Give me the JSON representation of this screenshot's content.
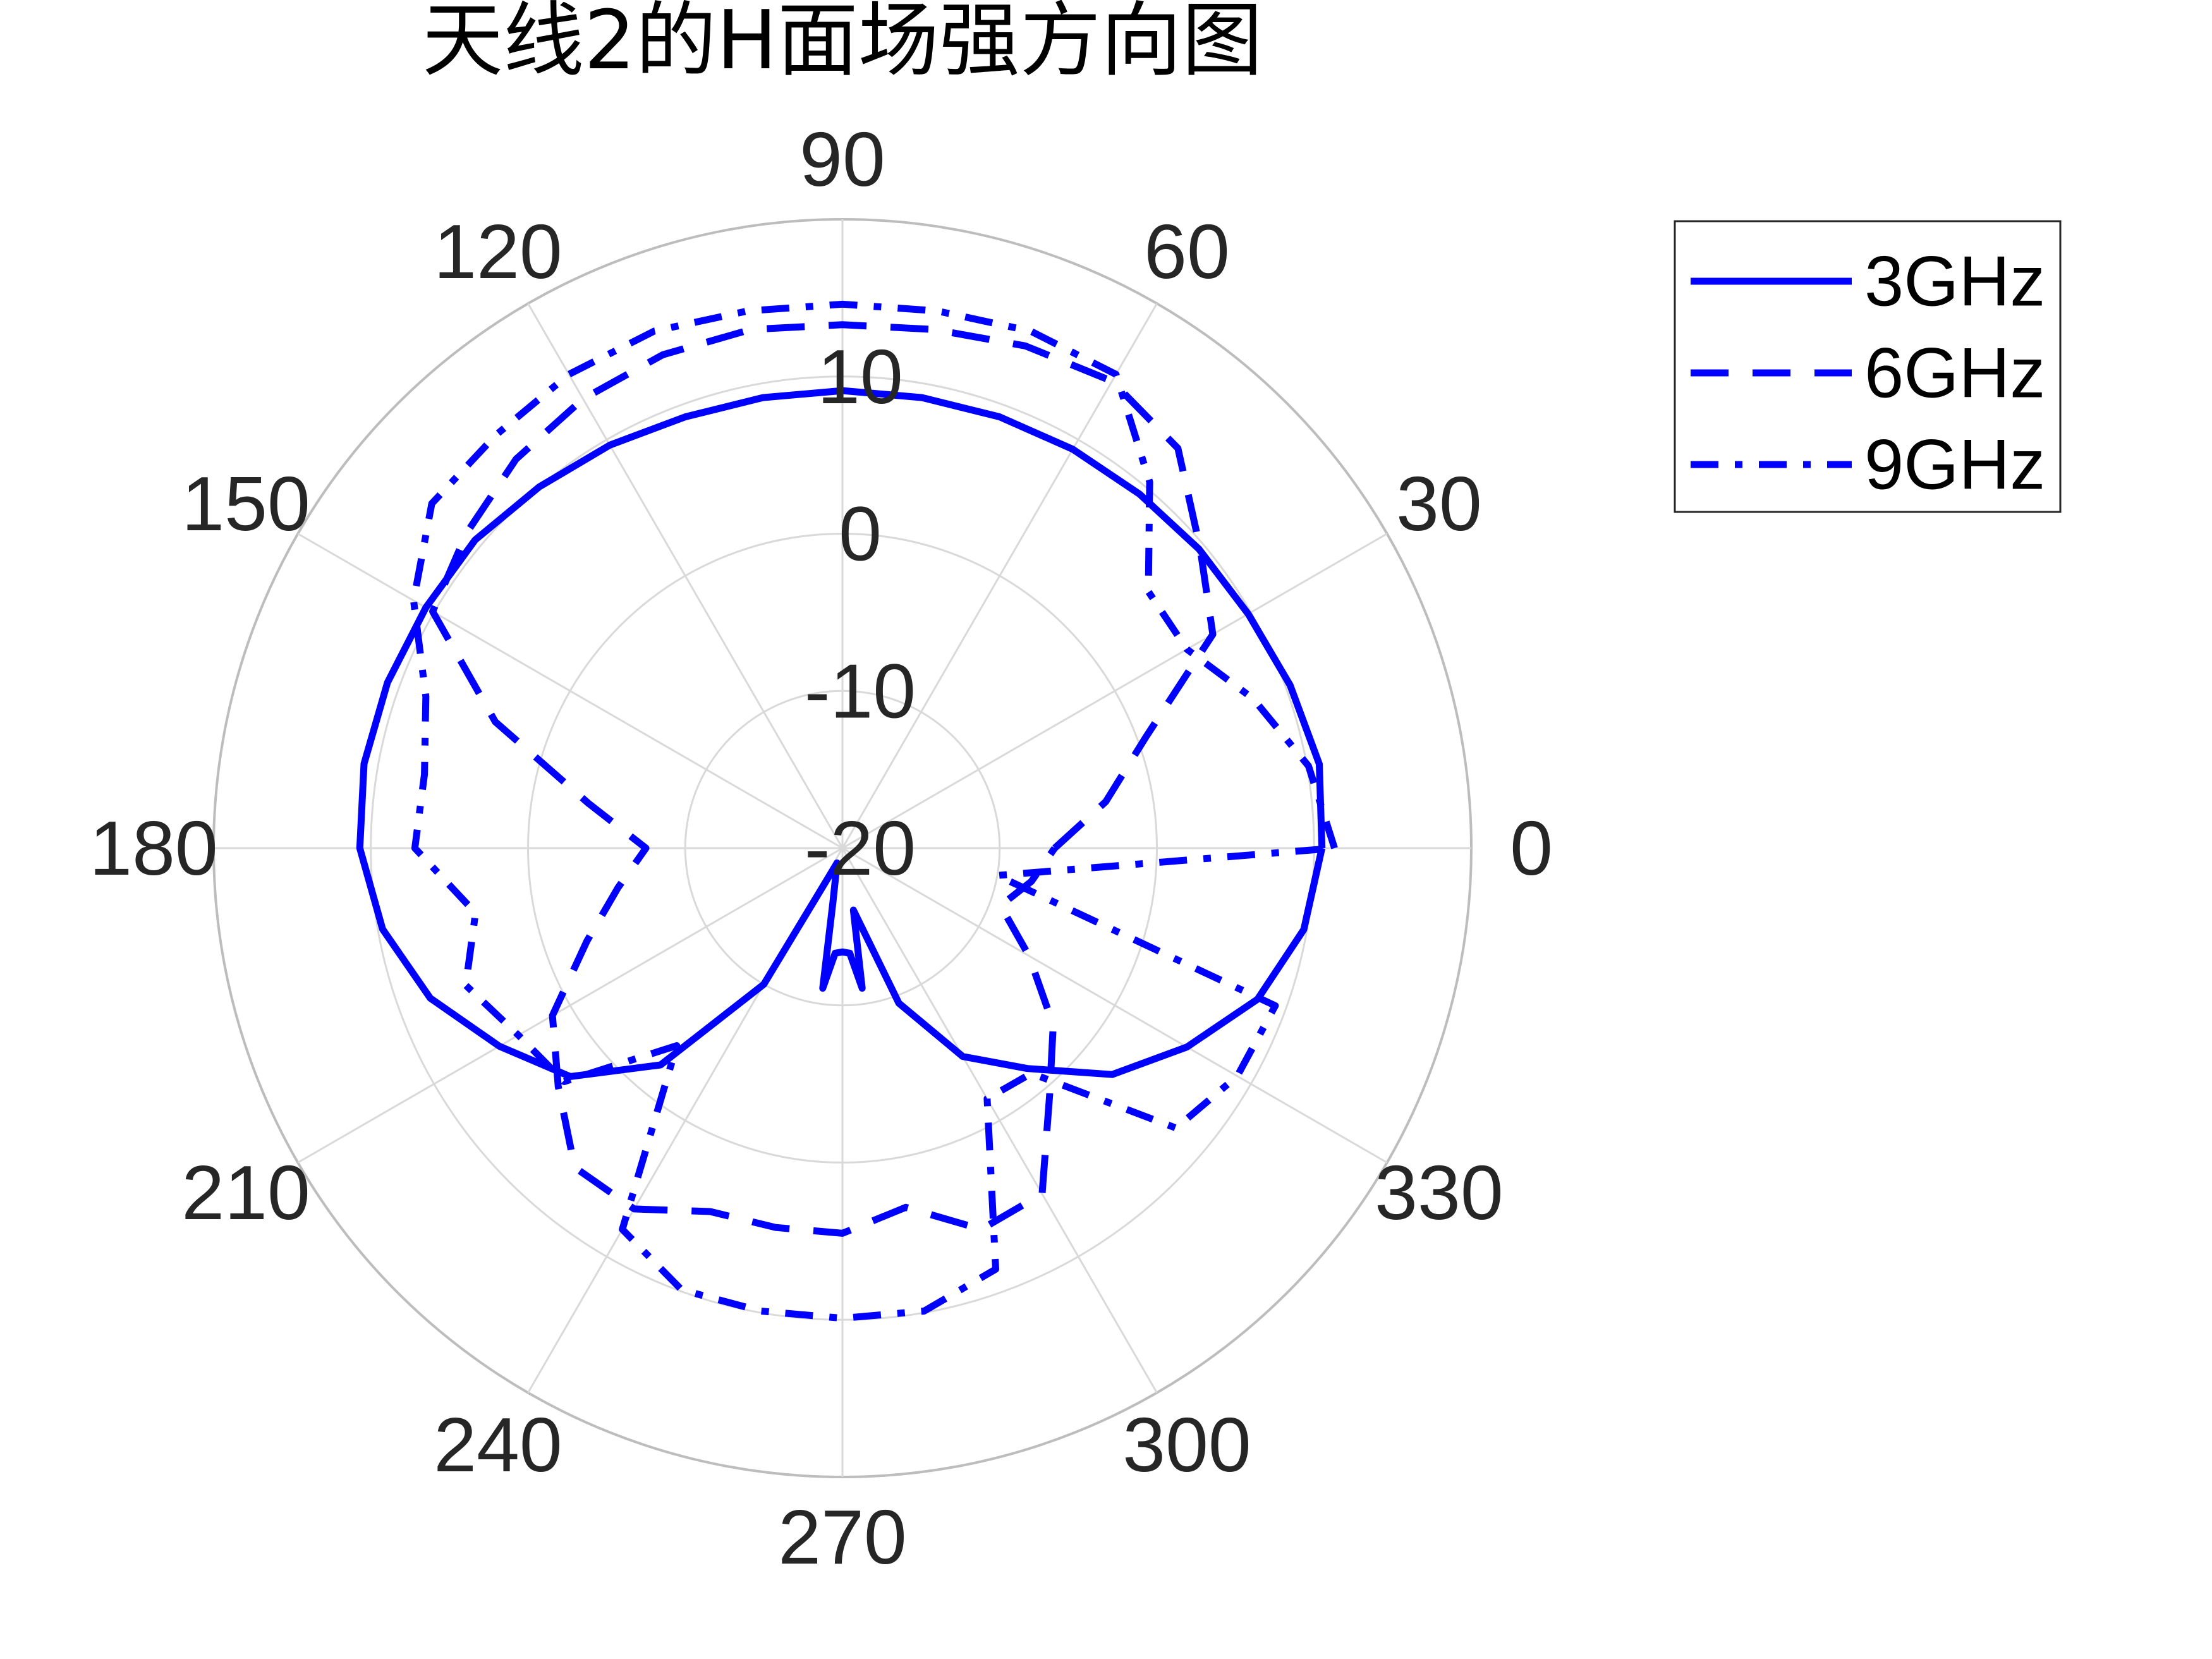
{
  "chart_data": {
    "type": "line",
    "polar": true,
    "title": "天线2的H面场强方向图",
    "angle_unit": "degrees",
    "angle_ticks": [
      0,
      30,
      60,
      90,
      120,
      150,
      180,
      210,
      240,
      270,
      300,
      330
    ],
    "angle_tick_labels": [
      "0",
      "30",
      "60",
      "90",
      "120",
      "150",
      "180",
      "210",
      "240",
      "270",
      "300",
      "330"
    ],
    "radial_range": [
      -20,
      20
    ],
    "radial_ticks": [
      -20,
      -10,
      0,
      10
    ],
    "radial_tick_labels": [
      "-20",
      "-10",
      "0",
      "10"
    ],
    "radial_label_angle": 90,
    "grid": true,
    "legend_position": "top-right",
    "colors": {
      "series": "#0000ff",
      "grid": "#d9d9d9",
      "text": "#262626"
    },
    "series": [
      {
        "name": "3GHz",
        "line_style": "solid",
        "angles": [
          0,
          10,
          20,
          30,
          40,
          50,
          60,
          70,
          80,
          90,
          100,
          110,
          120,
          130,
          140,
          150,
          160,
          170,
          180,
          190,
          200,
          210,
          220,
          230,
          240,
          250,
          260,
          262,
          266,
          270,
          274,
          278,
          280,
          290,
          300,
          310,
          320,
          330,
          340,
          350
        ],
        "values": [
          10.5,
          10.8,
          10.3,
          9.8,
          9.6,
          9.4,
          9.3,
          9.2,
          9.1,
          9.1,
          9.1,
          9.2,
          9.6,
          10.0,
          10.5,
          10.6,
          10.8,
          10.9,
          10.7,
          9.7,
          7.9,
          5.2,
          2.6,
          -2.0,
          -10.0,
          -19.0,
          -16.5,
          -11.0,
          -13.3,
          -13.4,
          -13.3,
          -11.0,
          -16.0,
          -9.5,
          -4.7,
          -1.7,
          2.4,
          5.3,
          8.1,
          9.8
        ]
      },
      {
        "name": "6GHz",
        "line_style": "dashed",
        "angles": [
          0,
          10,
          20,
          30,
          40,
          50,
          60,
          70,
          80,
          90,
          100,
          110,
          120,
          130,
          140,
          150,
          160,
          170,
          180,
          190,
          200,
          210,
          220,
          230,
          240,
          250,
          260,
          270,
          280,
          290,
          300,
          310,
          320,
          330,
          340,
          350
        ],
        "values": [
          -6.5,
          -3.0,
          0.5,
          7.2,
          9.7,
          13.2,
          14.3,
          14.0,
          13.5,
          13.3,
          13.5,
          13.4,
          13.0,
          12.3,
          11.2,
          10.1,
          3.5,
          -3.6,
          -7.5,
          -5.5,
          -2.7,
          1.3,
          3.6,
          6.5,
          6.5,
          4.6,
          4.5,
          4.5,
          3.2,
          5.8,
          5.4,
          0.5,
          -2.5,
          -6.3,
          -9.3,
          -7.8
        ]
      },
      {
        "name": "9GHz",
        "line_style": "dashdot",
        "angles": [
          0,
          10,
          20,
          30,
          40,
          50,
          60,
          70,
          80,
          90,
          100,
          110,
          120,
          130,
          140,
          150,
          160,
          170,
          180,
          190,
          200,
          210,
          220,
          230,
          240,
          250,
          260,
          270,
          280,
          290,
          300,
          310,
          320,
          330,
          340,
          350
        ],
        "values": [
          11.3,
          10.1,
          7.8,
          5.3,
          5.4,
          10.4,
          14.8,
          15.0,
          14.7,
          14.6,
          14.7,
          15.0,
          14.8,
          14.3,
          14.1,
          11.5,
          8.2,
          7.0,
          7.2,
          3.7,
          5.5,
          3.8,
          3.1,
          -3.6,
          8.0,
          9.9,
          9.9,
          9.9,
          9.9,
          8.5,
          -1.6,
          -1.3,
          7.7,
          9.0,
          9.3,
          -10.0
        ]
      }
    ]
  }
}
